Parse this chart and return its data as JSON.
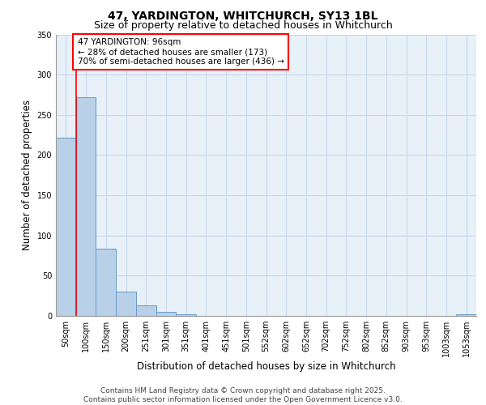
{
  "title_line1": "47, YARDINGTON, WHITCHURCH, SY13 1BL",
  "title_line2": "Size of property relative to detached houses in Whitchurch",
  "xlabel": "Distribution of detached houses by size in Whitchurch",
  "ylabel": "Number of detached properties",
  "categories": [
    "50sqm",
    "100sqm",
    "150sqm",
    "200sqm",
    "251sqm",
    "301sqm",
    "351sqm",
    "401sqm",
    "451sqm",
    "501sqm",
    "552sqm",
    "602sqm",
    "652sqm",
    "702sqm",
    "752sqm",
    "802sqm",
    "852sqm",
    "903sqm",
    "953sqm",
    "1003sqm",
    "1053sqm"
  ],
  "values": [
    222,
    272,
    84,
    30,
    13,
    5,
    2,
    0,
    0,
    0,
    0,
    0,
    0,
    0,
    0,
    0,
    0,
    0,
    0,
    0,
    2
  ],
  "bar_color": "#b8d0e8",
  "bar_edge_color": "#6699cc",
  "grid_color": "#c8d8ec",
  "background_color": "#ffffff",
  "plot_bg_color": "#e8f0f8",
  "annotation_text": "47 YARDINGTON: 96sqm\n← 28% of detached houses are smaller (173)\n70% of semi-detached houses are larger (436) →",
  "annotation_box_color": "white",
  "annotation_box_edge": "red",
  "ylim": [
    0,
    350
  ],
  "yticks": [
    0,
    50,
    100,
    150,
    200,
    250,
    300,
    350
  ],
  "footer": "Contains HM Land Registry data © Crown copyright and database right 2025.\nContains public sector information licensed under the Open Government Licence v3.0.",
  "title_fontsize": 10,
  "subtitle_fontsize": 9,
  "axis_label_fontsize": 8.5,
  "tick_fontsize": 7,
  "footer_fontsize": 6.5,
  "ann_fontsize": 7.5
}
